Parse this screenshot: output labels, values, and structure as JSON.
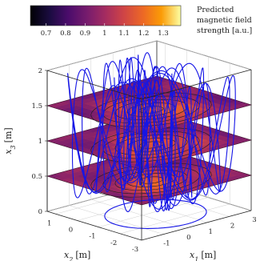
{
  "chart_data": {
    "type": "3d-surface-slices",
    "colorbar": {
      "title_lines": [
        "Predicted",
        "magnetic field",
        "strength [a.u.]"
      ],
      "ticks": [
        "0.7",
        "0.8",
        "0.9",
        "1",
        "1.1",
        "1.2",
        "1.3"
      ],
      "range": [
        0.62,
        1.39
      ],
      "colormap": "inferno"
    },
    "x1_axis": {
      "label": "x",
      "label_sub": "1",
      "unit": "[m]",
      "ticks": [
        "-1",
        "0",
        "1",
        "2",
        "3"
      ],
      "range": [
        -2,
        3
      ]
    },
    "x2_axis": {
      "label": "x",
      "label_sub": "2",
      "unit": "[m]",
      "ticks": [
        "1",
        "0",
        "-1",
        "-2",
        "-3"
      ],
      "range": [
        -3,
        1.4
      ]
    },
    "x3_axis": {
      "label": "x",
      "label_sub": "3",
      "unit": "[m]",
      "ticks": [
        "0",
        "0.5",
        "1",
        "1.5",
        "2"
      ],
      "range": [
        0,
        2
      ]
    },
    "slices": [
      {
        "x3": 0.5,
        "field_range": [
          0.75,
          1.35
        ]
      },
      {
        "x3": 1.0,
        "field_range": [
          0.8,
          1.2
        ]
      },
      {
        "x3": 1.5,
        "field_range": [
          0.85,
          1.15
        ]
      }
    ],
    "trajectory": {
      "color": "#1515e6"
    },
    "grid": true
  }
}
